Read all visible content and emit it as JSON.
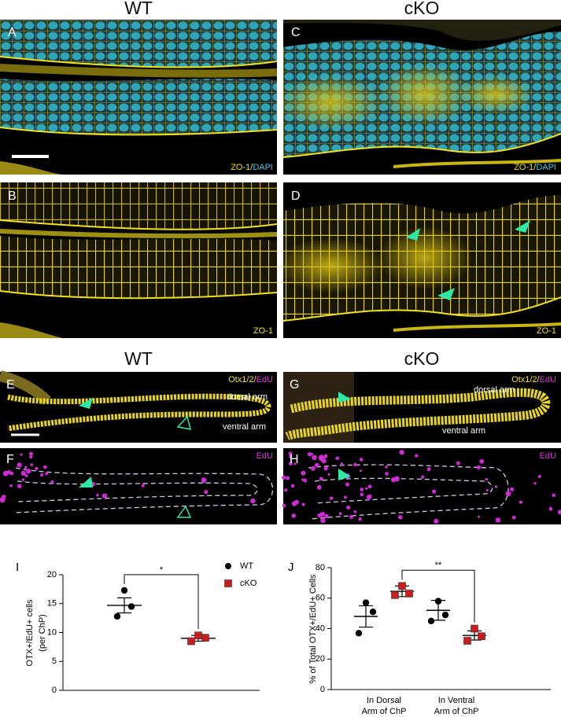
{
  "figure": {
    "top_headers": [
      "WT",
      "cKO"
    ],
    "bottom_headers": [
      "WT",
      "cKO"
    ],
    "panels": {
      "A": {
        "letter": "A",
        "caption": [
          "ZO-1/",
          "DAPI"
        ]
      },
      "B": {
        "letter": "B",
        "caption": [
          "ZO-1"
        ]
      },
      "C": {
        "letter": "C",
        "caption": [
          "ZO-1/",
          "DAPI"
        ]
      },
      "D": {
        "letter": "D",
        "caption": [
          "ZO-1"
        ]
      },
      "E": {
        "letter": "E",
        "caption": [
          "Otx1/2/",
          "EdU"
        ],
        "arms": [
          "dorsal arm",
          "ventral arm"
        ]
      },
      "F": {
        "letter": "F",
        "caption": [
          "EdU"
        ]
      },
      "G": {
        "letter": "G",
        "caption": [
          "Otx1/2/",
          "EdU"
        ],
        "arms": [
          "dorsal arm",
          "ventral arm"
        ]
      },
      "H": {
        "letter": "H",
        "caption": [
          "EdU"
        ]
      }
    }
  },
  "chart_data": [
    {
      "type": "dot",
      "panel_label": "I",
      "ylabel": [
        "OTX+/EdU+ cells",
        "(per ChP)"
      ],
      "ylim": [
        0,
        20
      ],
      "yticks": [
        0,
        5,
        10,
        15,
        20
      ],
      "legend": "upper right",
      "categories": [
        null
      ],
      "series": [
        {
          "name": "WT",
          "color": "#000000",
          "marker": "circle",
          "values": [
            [
              17.3,
              14.5,
              12.8
            ]
          ],
          "mean": [
            14.7
          ],
          "error": [
            1.3
          ]
        },
        {
          "name": "cKO",
          "color": "#c81e1e",
          "marker": "square",
          "values": [
            [
              9.5,
              9.1,
              8.5
            ]
          ],
          "mean": [
            9.0
          ],
          "error": [
            0.5
          ]
        }
      ],
      "annotations": [
        {
          "text": "*",
          "between": [
            [
              0,
              0
            ],
            [
              1,
              0
            ]
          ]
        }
      ]
    },
    {
      "type": "dot",
      "panel_label": "J",
      "ylabel": [
        "% of Total OTX+/EdU+ Cells"
      ],
      "ylim": [
        0,
        80
      ],
      "yticks": [
        0,
        20,
        40,
        60,
        80
      ],
      "categories": [
        [
          "In Dorsal",
          "Arm of ChP"
        ],
        [
          "In Ventral",
          "Arm of ChP"
        ]
      ],
      "series": [
        {
          "name": "WT",
          "color": "#000000",
          "marker": "circle",
          "values": [
            [
              57,
              51,
              37
            ],
            [
              58,
              49,
              45
            ]
          ],
          "mean": [
            48,
            52
          ],
          "error": [
            7,
            6.5
          ]
        },
        {
          "name": "cKO",
          "color": "#c81e1e",
          "marker": "square",
          "values": [
            [
              68,
              63,
              62
            ],
            [
              40,
              35,
              32
            ]
          ],
          "mean": [
            64.5,
            35.5
          ],
          "error": [
            3.5,
            3
          ]
        }
      ],
      "annotations": [
        {
          "text": "**",
          "between": [
            [
              1,
              0
            ],
            [
              1,
              1
            ]
          ]
        }
      ]
    }
  ]
}
